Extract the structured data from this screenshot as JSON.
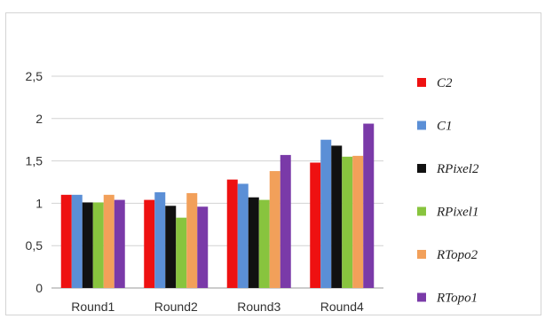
{
  "chart_data": {
    "type": "bar",
    "categories": [
      "Round1",
      "Round2",
      "Round3",
      "Round4"
    ],
    "series": [
      {
        "name": "C2",
        "color": "#ee1111",
        "values": [
          1.1,
          1.04,
          1.28,
          1.48
        ]
      },
      {
        "name": "C1",
        "color": "#5b8fd6",
        "values": [
          1.1,
          1.13,
          1.23,
          1.75
        ]
      },
      {
        "name": "RPixel2",
        "color": "#111111",
        "values": [
          1.01,
          0.97,
          1.07,
          1.68
        ]
      },
      {
        "name": "RPixel1",
        "color": "#88c43e",
        "values": [
          1.01,
          0.83,
          1.04,
          1.55
        ]
      },
      {
        "name": "RTopo2",
        "color": "#f2a05a",
        "values": [
          1.1,
          1.12,
          1.38,
          1.56
        ]
      },
      {
        "name": "RTopo1",
        "color": "#7a3aa8",
        "values": [
          1.04,
          0.96,
          1.57,
          1.94
        ]
      }
    ],
    "ylim": [
      0,
      2.5
    ],
    "yticks": [
      "0",
      "0,5",
      "1",
      "1,5",
      "2",
      "2,5"
    ],
    "grid": true,
    "legend_position": "right"
  }
}
